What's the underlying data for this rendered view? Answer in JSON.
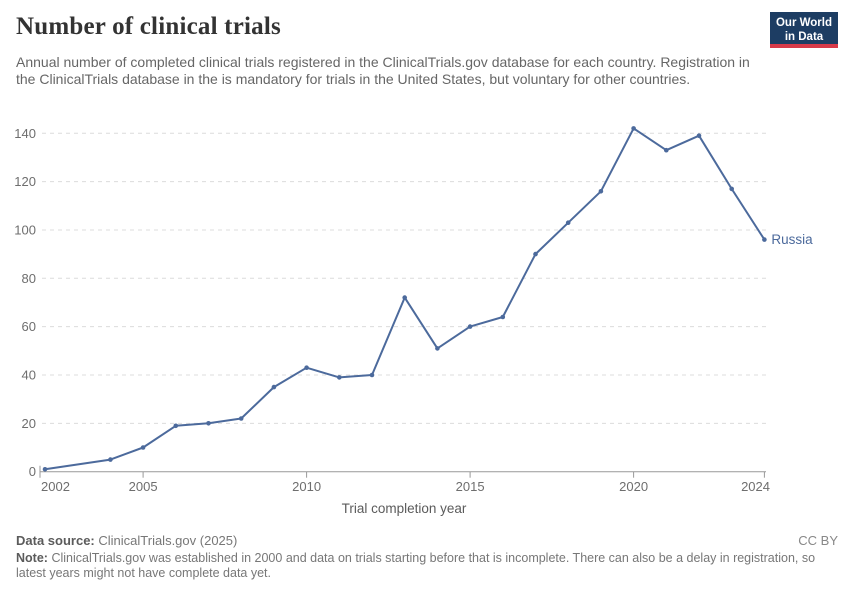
{
  "header": {
    "title": "Number of clinical trials",
    "subtitle": "Annual number of completed clinical trials registered in the ClinicalTrials.gov database for each country. Registration in the ClinicalTrials database in the is mandatory for trials in the United States, but voluntary for other countries.",
    "logo": {
      "line1": "Our World",
      "line2": "in Data"
    }
  },
  "colors": {
    "series_line": "#4c6a9c",
    "grid": "#dcdcdc",
    "axis": "#999999",
    "tick_text": "#6e6e6e",
    "axis_title_text": "#5b5b5b",
    "logo_bg": "#1d3d63",
    "logo_accent": "#d73a49",
    "title_text": "#333333",
    "subtitle_text": "#666666"
  },
  "chart_data": {
    "type": "line",
    "title": "Number of clinical trials",
    "xlabel": "Trial completion year",
    "ylabel": "",
    "xlim": [
      2002,
      2024
    ],
    "ylim": [
      0,
      140
    ],
    "x_ticks": [
      2002,
      2005,
      2010,
      2015,
      2020,
      2024
    ],
    "y_ticks": [
      0,
      20,
      40,
      60,
      80,
      100,
      120,
      140
    ],
    "grid": "horizontal-dashed",
    "legend_position": "end-of-line-label",
    "series": [
      {
        "name": "Russia",
        "color": "#4c6a9c",
        "points": [
          [
            2002,
            1
          ],
          [
            2004,
            5
          ],
          [
            2005,
            10
          ],
          [
            2006,
            19
          ],
          [
            2007,
            20
          ],
          [
            2008,
            22
          ],
          [
            2009,
            35
          ],
          [
            2010,
            43
          ],
          [
            2011,
            39
          ],
          [
            2012,
            40
          ],
          [
            2013,
            72
          ],
          [
            2014,
            51
          ],
          [
            2015,
            60
          ],
          [
            2016,
            64
          ],
          [
            2017,
            90
          ],
          [
            2018,
            103
          ],
          [
            2019,
            116
          ],
          [
            2020,
            142
          ],
          [
            2021,
            133
          ],
          [
            2022,
            139
          ],
          [
            2023,
            117
          ],
          [
            2024,
            96
          ]
        ]
      }
    ]
  },
  "footer": {
    "data_source_label": "Data source:",
    "data_source_value": "ClinicalTrials.gov (2025)",
    "license": "CC BY",
    "note_label": "Note:",
    "note_value": "ClinicalTrials.gov was established in 2000 and data on trials starting before that is incomplete. There can also be a delay in registration, so latest years might not have complete data yet."
  }
}
